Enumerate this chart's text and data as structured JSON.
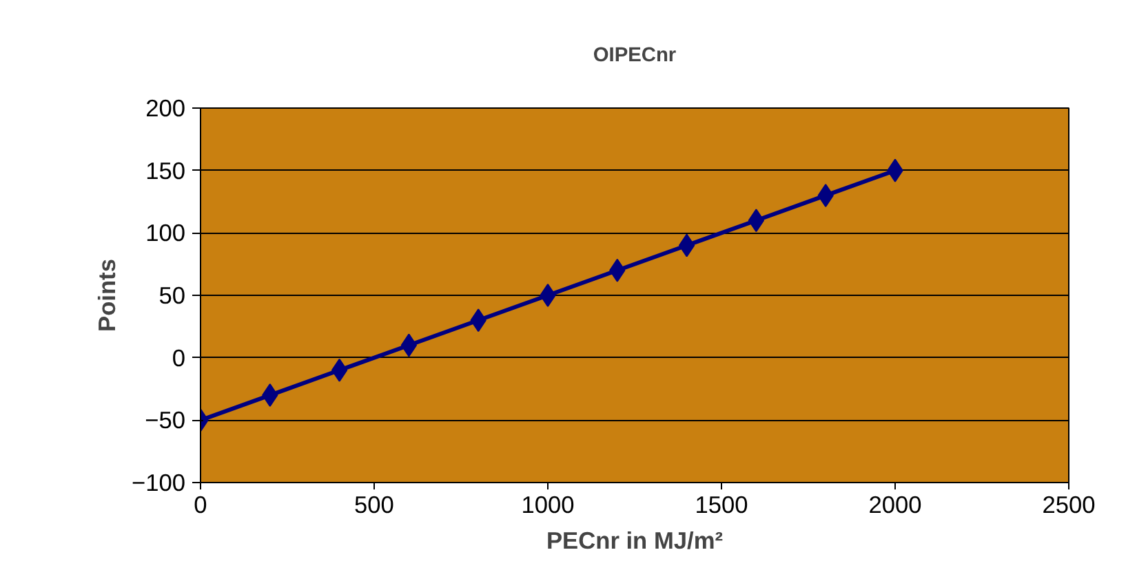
{
  "chart_data": {
    "type": "line",
    "title": "OIPECnr",
    "xlabel": "PECnr in MJ/m²",
    "ylabel": "Points",
    "x": [
      0,
      200,
      400,
      600,
      800,
      1000,
      1200,
      1400,
      1600,
      1800,
      2000
    ],
    "series": [
      {
        "color": "#000080",
        "values": [
          -50,
          -30,
          -10,
          10,
          30,
          50,
          70,
          90,
          110,
          130,
          150
        ]
      }
    ],
    "xlim": [
      0,
      2500
    ],
    "xticks": [
      0,
      500,
      1000,
      1500,
      2000,
      2500
    ],
    "ylim": [
      -100,
      200
    ],
    "yticks": [
      -100,
      -50,
      0,
      50,
      100,
      150,
      200
    ],
    "grid": "y",
    "marker": "diamond",
    "line_style": "solid"
  }
}
